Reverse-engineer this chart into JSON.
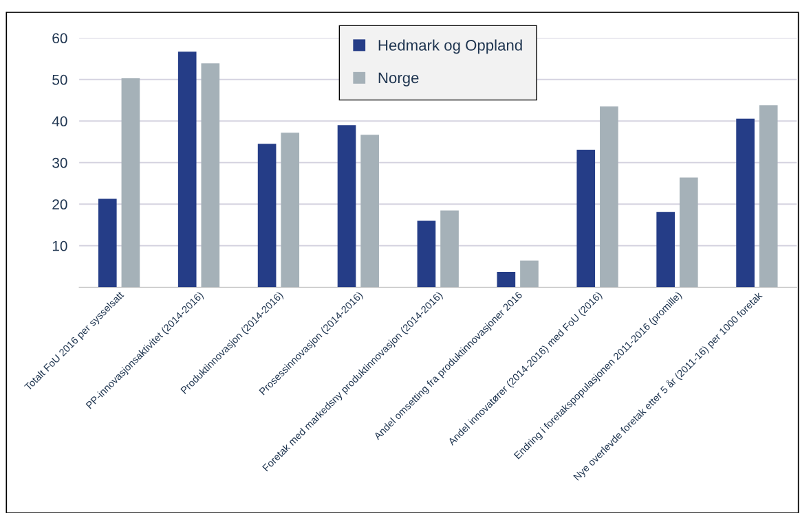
{
  "chart_data": {
    "type": "bar",
    "categories": [
      "Totalt FoU 2016 per sysselsatt",
      "PP-innovasjonsaktivitet (2014-2016)",
      "Produktinnovasjon (2014-2016)",
      "Prosessinnovasjon (2014-2016)",
      "Foretak med markedsny produktinnovasjon (2014-2016)",
      "Andel omsetting fra produktinnovasjoner 2016",
      "Andel innovatører (2014-2016) med FoU (2016)",
      "Endring i foretakspopulasjonen 2011-2016 (promille)",
      "Nye overlevde foretak etter 5 år (2011-16) per 1000 foretak"
    ],
    "series": [
      {
        "name": "Hedmark og Oppland",
        "color": "#253d87",
        "values": [
          21.3,
          56.7,
          34.5,
          39.0,
          16.0,
          3.7,
          33.1,
          18.1,
          40.6
        ]
      },
      {
        "name": "Norge",
        "color": "#a5b1b8",
        "values": [
          50.3,
          53.9,
          37.2,
          36.7,
          18.5,
          6.4,
          43.5,
          26.4,
          43.8
        ]
      }
    ],
    "ylim": [
      0,
      60
    ],
    "yticks": [
      10,
      20,
      30,
      40,
      50,
      60
    ],
    "grid": "y",
    "legend": "top"
  }
}
